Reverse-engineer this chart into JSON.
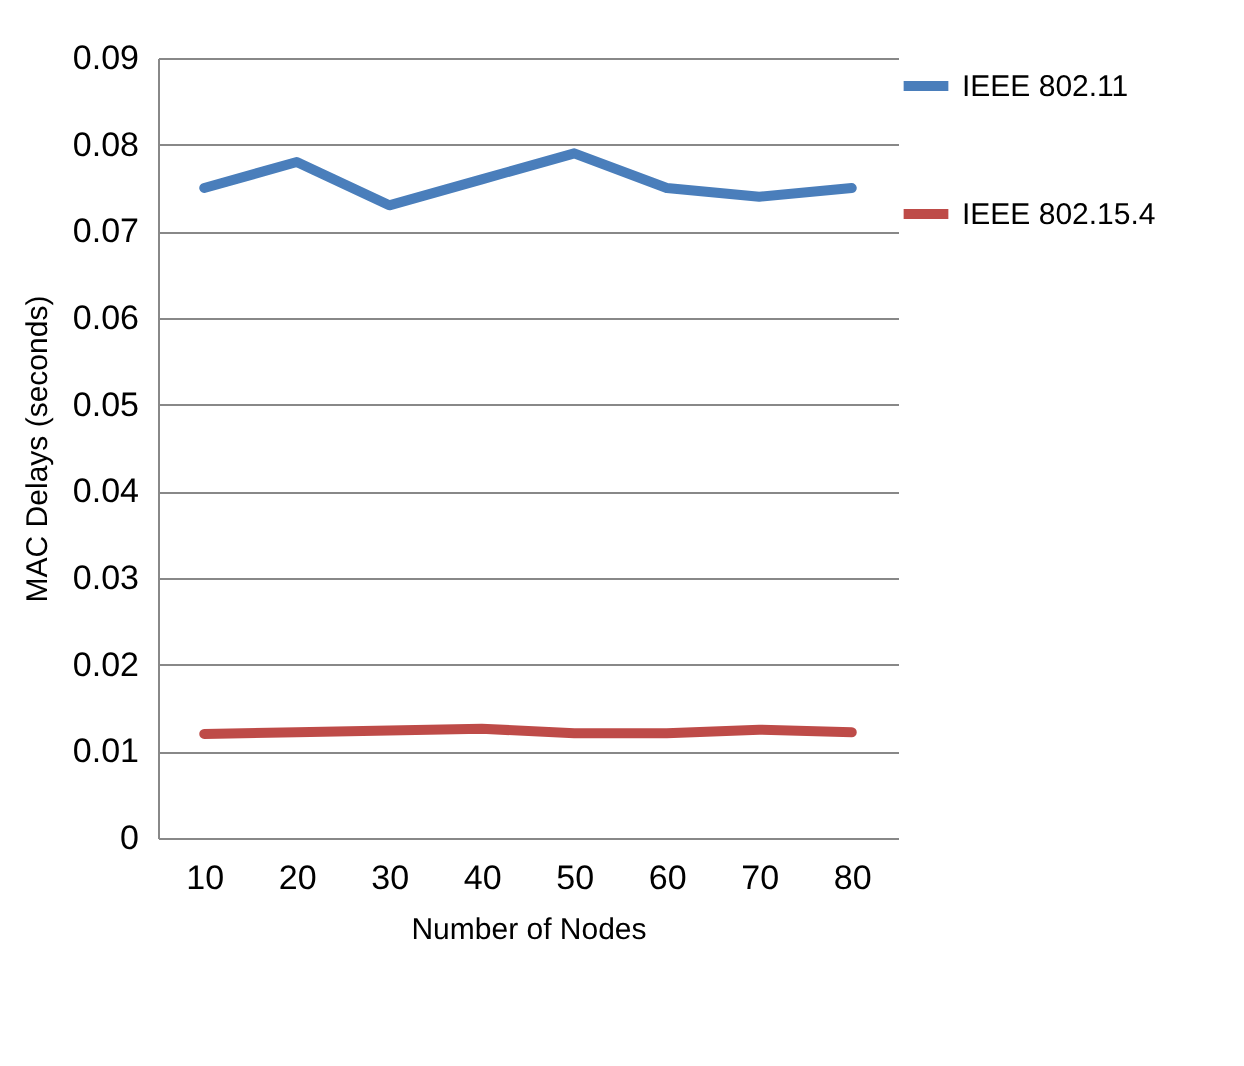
{
  "chart_data": {
    "type": "line",
    "xlabel": "Number of Nodes",
    "ylabel": "MAC Delays (seconds)",
    "categories": [
      "10",
      "20",
      "30",
      "40",
      "50",
      "60",
      "70",
      "80"
    ],
    "series": [
      {
        "name": "IEEE 802.11",
        "color": "#4a7ebb",
        "values": [
          0.075,
          0.078,
          0.073,
          0.076,
          0.079,
          0.075,
          0.074,
          0.075
        ]
      },
      {
        "name": "IEEE 802.15.4",
        "color": "#be4b48",
        "values": [
          0.012,
          0.0122,
          0.0124,
          0.0126,
          0.0121,
          0.0121,
          0.0125,
          0.0122
        ]
      }
    ],
    "ylim": [
      0,
      0.09
    ],
    "yticks": [
      0,
      0.01,
      0.02,
      0.03,
      0.04,
      0.05,
      0.06,
      0.07,
      0.08,
      0.09
    ],
    "grid": "y",
    "legend": "right",
    "marker": "none",
    "line_style": "solid"
  }
}
